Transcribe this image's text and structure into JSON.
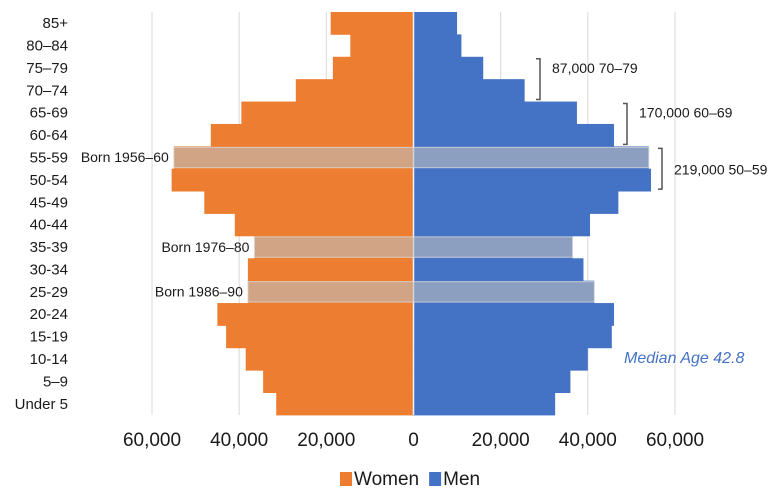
{
  "chart_data": {
    "type": "pyramid",
    "categories": [
      "85+",
      "80–84",
      "75–79",
      "70–74",
      "65-69",
      "60-64",
      "55-59",
      "50-54",
      "45-49",
      "40-44",
      "35-39",
      "30-34",
      "25-29",
      "20-24",
      "15-19",
      "10-14",
      "5–9",
      "Under 5"
    ],
    "series": [
      {
        "name": "Women",
        "color": "#ed7d31",
        "side": "left",
        "values": [
          19000,
          14500,
          18500,
          27000,
          39500,
          46500,
          55000,
          55500,
          48000,
          41000,
          36500,
          38000,
          38000,
          45000,
          43000,
          38500,
          34500,
          31500
        ]
      },
      {
        "name": "Men",
        "color": "#4472c4",
        "side": "right",
        "values": [
          10000,
          11000,
          16000,
          25500,
          37500,
          46000,
          54000,
          54500,
          47000,
          40500,
          36500,
          39000,
          41500,
          46000,
          45500,
          40000,
          36000,
          32500
        ]
      }
    ],
    "xlim": [
      -60000,
      60000
    ],
    "xticks": [
      {
        "value": -60000,
        "label": "60,000"
      },
      {
        "value": -40000,
        "label": "40,000"
      },
      {
        "value": -20000,
        "label": "20,000"
      },
      0,
      {
        "value": 20000,
        "label": "20,000"
      },
      {
        "value": 40000,
        "label": "40,000"
      },
      {
        "value": 60000,
        "label": "60,000"
      }
    ],
    "grid": true,
    "legend": "bottom",
    "highlights": [
      {
        "category": "55-59",
        "label": "Born 1956–60"
      },
      {
        "category": "35-39",
        "label": "Born 1976–80"
      },
      {
        "category": "25-29",
        "label": "Born 1986–90"
      }
    ],
    "brackets": [
      {
        "categories": [
          "75–79",
          "70–74"
        ],
        "label": "87,000 70–79"
      },
      {
        "categories": [
          "65-69",
          "60-64"
        ],
        "label": "170,000 60–69"
      },
      {
        "categories": [
          "55-59",
          "50-54"
        ],
        "label": "219,000 50–59"
      }
    ],
    "note": "Median Age 42.8"
  }
}
